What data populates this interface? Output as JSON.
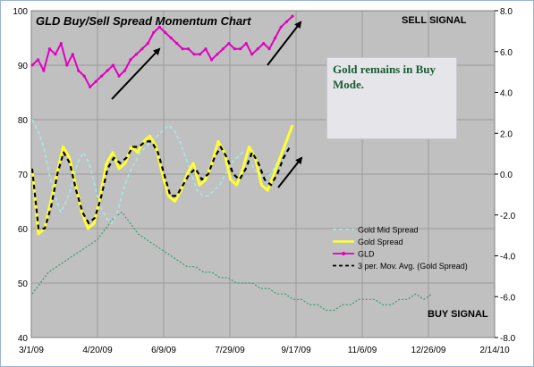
{
  "chart_data": {
    "type": "line",
    "title": "GLD Buy/Sell Spread Momentum Chart",
    "x_labels": [
      "3/1/09",
      "4/20/09",
      "6/9/09",
      "7/29/09",
      "9/17/09",
      "11/6/09",
      "12/26/09",
      "2/14/10"
    ],
    "y_left": {
      "ticks": [
        "40",
        "50",
        "60",
        "70",
        "80",
        "90",
        "100"
      ],
      "ylim": [
        40,
        100
      ]
    },
    "y_right": {
      "ticks": [
        "-8.0",
        "-6.0",
        "-4.0",
        "-2.0",
        "0.0",
        "2.0",
        "4.0",
        "6.0",
        "8.0"
      ],
      "ylim": [
        -8,
        8
      ]
    },
    "grid": true,
    "legend_position": "lower-right",
    "annotations": {
      "sell_signal": "SELL SIGNAL",
      "buy_signal": "BUY SIGNAL",
      "note": "Gold remains in Buy Mode."
    },
    "series": [
      {
        "name": "Gold Mid Spread",
        "axis": "left",
        "color": "#a6e8e8",
        "style": "dashed",
        "values": [
          80,
          78,
          75,
          70,
          66,
          63,
          65,
          68,
          72,
          74,
          72,
          68,
          64,
          62,
          61,
          63,
          67,
          70,
          72,
          74,
          75,
          76,
          77,
          78,
          79,
          78,
          76,
          73,
          70,
          67,
          66,
          66,
          67,
          68,
          70,
          72,
          73,
          74,
          73,
          71,
          70,
          69,
          70,
          72,
          74,
          75
        ]
      },
      {
        "name": "Gold  Spread",
        "axis": "left",
        "color": "#ffff33",
        "style": "solid",
        "values": [
          71,
          59,
          60,
          65,
          70,
          75,
          73,
          68,
          63,
          60,
          61,
          66,
          72,
          74,
          71,
          72,
          75,
          74,
          76,
          77,
          75,
          70,
          66,
          65,
          67,
          70,
          72,
          68,
          69,
          72,
          76,
          74,
          69,
          68,
          71,
          75,
          73,
          68,
          67,
          70,
          73,
          76,
          79
        ]
      },
      {
        "name": "GLD",
        "axis": "left",
        "color": "#e000c0",
        "style": "solid",
        "values": [
          90,
          91,
          89,
          93,
          92,
          94,
          90,
          92,
          89,
          88,
          86,
          87,
          88,
          89,
          90,
          88,
          89,
          91,
          92,
          93,
          94,
          96,
          97,
          96,
          95,
          94,
          93,
          93,
          92,
          92,
          93,
          91,
          92,
          93,
          94,
          93,
          93,
          94,
          92,
          93,
          94,
          93,
          95,
          97,
          98,
          99
        ]
      },
      {
        "name": "3 per. Mov. Avg. (Gold  Spread)",
        "axis": "left",
        "color": "#000000",
        "style": "dashed",
        "values": [
          71,
          60,
          60,
          64,
          70,
          74,
          72,
          67,
          63,
          61,
          62,
          66,
          71,
          73,
          72,
          73,
          75,
          75,
          76,
          76,
          74,
          70,
          66,
          66,
          68,
          70,
          71,
          69,
          70,
          73,
          75,
          73,
          70,
          69,
          71,
          74,
          72,
          69,
          68,
          70,
          73,
          75
        ]
      },
      {
        "name": "",
        "axis": "left",
        "color": "#3d9a6a",
        "style": "dotted",
        "values": [
          48,
          50,
          52,
          53,
          54,
          55,
          56,
          57,
          58,
          60,
          62,
          63,
          61,
          59,
          58,
          57,
          56,
          55,
          54,
          53,
          53,
          52,
          52,
          51,
          51,
          50,
          50,
          50,
          49,
          49,
          48,
          48,
          47,
          47,
          46,
          46,
          45,
          45,
          46,
          46,
          47,
          47,
          47,
          46,
          46,
          47,
          47,
          48,
          47,
          48
        ]
      }
    ]
  }
}
